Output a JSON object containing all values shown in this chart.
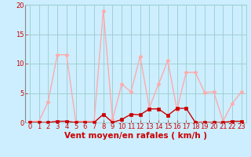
{
  "x": [
    0,
    1,
    2,
    3,
    4,
    5,
    6,
    7,
    8,
    9,
    10,
    11,
    12,
    13,
    14,
    15,
    16,
    17,
    18,
    19,
    20,
    21,
    22,
    23
  ],
  "rafales": [
    0.2,
    0.2,
    3.5,
    11.5,
    11.5,
    0.2,
    0.2,
    0.2,
    19.0,
    0.5,
    6.5,
    5.2,
    11.2,
    2.5,
    6.5,
    10.5,
    2.2,
    8.5,
    8.5,
    5.1,
    5.2,
    0.2,
    3.2,
    5.2
  ],
  "moyen": [
    0.0,
    0.0,
    0.0,
    0.2,
    0.2,
    0.0,
    0.0,
    0.0,
    1.4,
    0.0,
    0.5,
    1.4,
    1.3,
    2.3,
    2.3,
    1.2,
    2.4,
    2.4,
    0.0,
    0.0,
    0.0,
    0.0,
    0.2,
    0.2
  ],
  "color_rafales": "#ffaaaa",
  "color_moyen": "#cc0000",
  "bg_color": "#cceeff",
  "grid_color": "#99cccc",
  "xlabel": "Vent moyen/en rafales ( km/h )",
  "ylim": [
    0,
    20
  ],
  "xlim": [
    -0.5,
    23.5
  ],
  "yticks": [
    0,
    5,
    10,
    15,
    20
  ],
  "xticks": [
    0,
    1,
    2,
    3,
    4,
    5,
    6,
    7,
    8,
    9,
    10,
    11,
    12,
    13,
    14,
    15,
    16,
    17,
    18,
    19,
    20,
    21,
    22,
    23
  ],
  "tick_color": "#cc0000",
  "label_color": "#cc0000",
  "xlabel_fontsize": 7.5,
  "tick_fontsize": 6.0
}
